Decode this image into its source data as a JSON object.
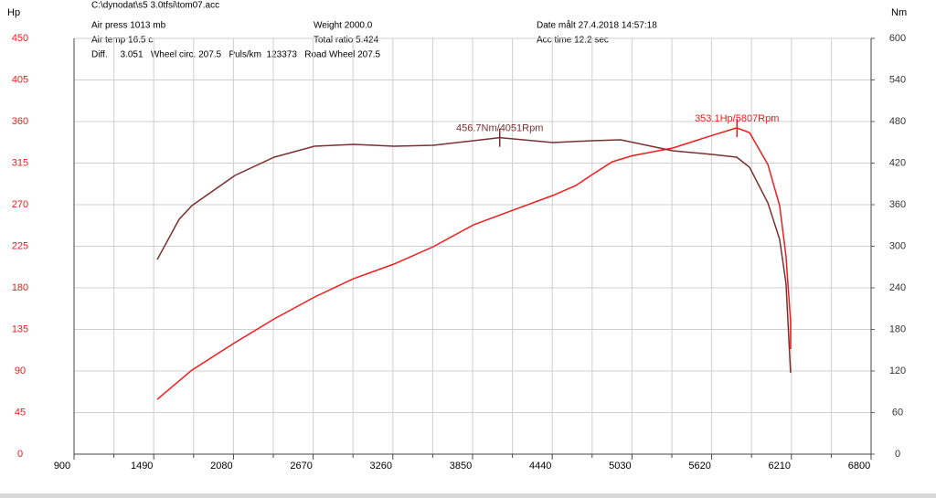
{
  "chart_data": {
    "type": "line",
    "header": [
      "C:\\dynodat\\s5 3.0tfsi\\tom07.acc",
      "Air press  1013 mb",
      "Weight   2000.0",
      "Date målt 27.4.2018 14:57:18",
      "Air temp   16.5 c",
      "Total ratio 5.424",
      "Acc time   12.2 sec",
      "Diff.     3.051   Wheel circ. 207.5   Puls/km  123373   Road Wheel 207.5"
    ],
    "ylabel": "Hp",
    "y2label": "Nm",
    "xlim": [
      900,
      6800
    ],
    "xticks": [
      900,
      1490,
      2080,
      2670,
      3260,
      3850,
      4440,
      5030,
      5620,
      6210,
      6800
    ],
    "xminorticks": [
      1195,
      1785,
      2375,
      2965,
      3555,
      4145,
      4735,
      5325,
      5915,
      6505
    ],
    "ylim": [
      0,
      450
    ],
    "yticks": [
      0,
      45,
      90,
      135,
      180,
      225,
      270,
      315,
      360,
      405,
      450
    ],
    "y2lim": [
      0,
      600
    ],
    "y2ticks": [
      0,
      60,
      120,
      180,
      240,
      300,
      360,
      420,
      480,
      540,
      600
    ],
    "grid": true,
    "series": [
      {
        "color": "#ee1c1c",
        "axis": "y",
        "x": [
          1516,
          1773,
          2091,
          2382,
          2680,
          2970,
          3268,
          3559,
          3857,
          4148,
          4445,
          4615,
          4736,
          4885,
          5034,
          5332,
          5623,
          5805,
          5900,
          6036,
          6123,
          6170,
          6204,
          6204
        ],
        "values": [
          59.3,
          91,
          120.7,
          146.4,
          170,
          190,
          205.7,
          224.5,
          248.2,
          264,
          280,
          290.8,
          302.6,
          316.5,
          323,
          331.3,
          345,
          353.1,
          348,
          313.5,
          269,
          214.6,
          143.4,
          113.7
        ]
      },
      {
        "color": "#7a3030",
        "axis": "y2",
        "x": [
          1516,
          1678,
          1773,
          2091,
          2382,
          2680,
          2970,
          3268,
          3559,
          3857,
          4051,
          4445,
          4736,
          4946,
          5332,
          5623,
          5805,
          5900,
          6036,
          6123,
          6170,
          6204
        ],
        "values": [
          280.9,
          338.9,
          358.7,
          402.2,
          428.6,
          444.4,
          447,
          444.4,
          445.7,
          452.3,
          456.7,
          449.7,
          452.3,
          453.6,
          437.8,
          432.5,
          428.6,
          414,
          362.6,
          309.9,
          246.6,
          117.4
        ]
      }
    ],
    "annotations": [
      {
        "text": "456.7Nm/4051Rpm",
        "x": 4051,
        "y": 456.7,
        "axis": "y2",
        "color": "#7a3030"
      },
      {
        "text": "353.1Hp/5807Rpm",
        "x": 5807,
        "y": 353.1,
        "axis": "y",
        "color": "#ee1c1c"
      }
    ]
  }
}
